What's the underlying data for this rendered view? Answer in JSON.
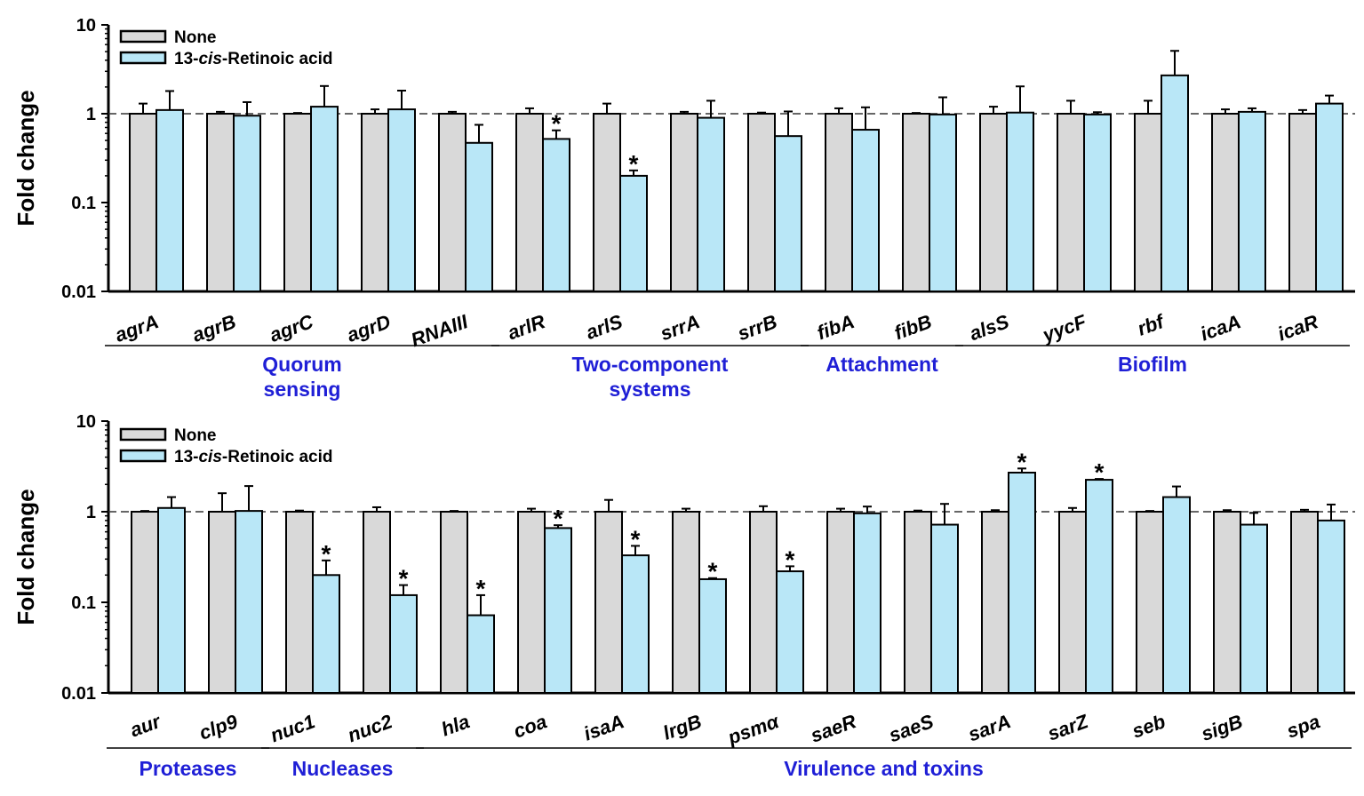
{
  "colors": {
    "none": "#d9d9d9",
    "treated": "#b9e7f7",
    "group_label": "#1f1fd6",
    "axis": "#000000"
  },
  "chart_data": [
    {
      "type": "bar",
      "y_scale": "log",
      "ylabel": "Fold change",
      "ylim": [
        0.01,
        10
      ],
      "yticks": [
        "0.01",
        "0.1",
        "1",
        "10"
      ],
      "reference_line": 1,
      "legend": {
        "placement": "top-left",
        "entries": [
          {
            "prefix": "None",
            "italic": "",
            "suffix": ""
          },
          {
            "prefix": "13-",
            "italic": "cis",
            "suffix": "-Retinoic acid"
          }
        ]
      },
      "categories": [
        "agrA",
        "agrB",
        "agrC",
        "agrD",
        "RNAIII",
        "arlR",
        "arlS",
        "srrA",
        "srrB",
        "fibA",
        "fibB",
        "alsS",
        "yycF",
        "rbf",
        "icaA",
        "icaR"
      ],
      "series": [
        {
          "name": "None",
          "values": [
            1.0,
            1.0,
            1.0,
            1.0,
            1.0,
            1.0,
            1.0,
            1.0,
            1.0,
            1.0,
            1.0,
            1.0,
            1.0,
            1.0,
            1.0,
            1.0
          ],
          "errors": [
            0.3,
            0.05,
            0.02,
            0.12,
            0.05,
            0.15,
            0.3,
            0.05,
            0.03,
            0.15,
            0.02,
            0.2,
            0.4,
            0.4,
            0.12,
            0.1
          ]
        },
        {
          "name": "13-cis-Retinoic acid",
          "values": [
            1.1,
            0.95,
            1.2,
            1.12,
            0.47,
            0.52,
            0.2,
            0.9,
            0.56,
            0.66,
            0.98,
            1.03,
            0.98,
            2.7,
            1.05,
            1.3
          ],
          "errors": [
            0.7,
            0.4,
            0.85,
            0.7,
            0.28,
            0.13,
            0.03,
            0.5,
            0.5,
            0.52,
            0.55,
            1.0,
            0.06,
            2.4,
            0.1,
            0.3
          ]
        }
      ],
      "significant": [
        "arlR",
        "arlS"
      ],
      "star_label": "*",
      "groups": [
        {
          "label_lines": [
            "Quorum",
            "sensing"
          ],
          "from": 0,
          "to": 4
        },
        {
          "label_lines": [
            "Two-component",
            "systems"
          ],
          "from": 5,
          "to": 8
        },
        {
          "label_lines": [
            "Attachment"
          ],
          "from": 9,
          "to": 10
        },
        {
          "label_lines": [
            "Biofilm"
          ],
          "from": 11,
          "to": 15
        }
      ]
    },
    {
      "type": "bar",
      "y_scale": "log",
      "ylabel": "Fold change",
      "ylim": [
        0.01,
        10
      ],
      "yticks": [
        "0.01",
        "0.1",
        "1",
        "10"
      ],
      "reference_line": 1,
      "legend": {
        "placement": "top-left",
        "entries": [
          {
            "prefix": "None",
            "italic": "",
            "suffix": ""
          },
          {
            "prefix": "13-",
            "italic": "cis",
            "suffix": "-Retinoic acid"
          }
        ]
      },
      "categories": [
        "aur",
        "clp9",
        "nuc1",
        "nuc2",
        "hla",
        "coa",
        "isaA",
        "lrgB",
        "psmα",
        "saeR",
        "saeS",
        "sarA",
        "sarZ",
        "seb",
        "sigB",
        "spa"
      ],
      "series": [
        {
          "name": "None",
          "values": [
            1.0,
            1.0,
            1.0,
            1.0,
            1.0,
            1.0,
            1.0,
            1.0,
            1.0,
            1.0,
            1.0,
            1.0,
            1.0,
            1.0,
            1.0,
            1.0
          ],
          "errors": [
            0.02,
            0.6,
            0.03,
            0.12,
            0.02,
            0.08,
            0.35,
            0.08,
            0.15,
            0.08,
            0.03,
            0.04,
            0.1,
            0.02,
            0.04,
            0.05
          ]
        },
        {
          "name": "13-cis-Retinoic acid",
          "values": [
            1.1,
            1.02,
            0.2,
            0.12,
            0.072,
            0.66,
            0.33,
            0.18,
            0.22,
            0.96,
            0.72,
            2.7,
            2.25,
            1.45,
            0.72,
            0.8
          ],
          "errors": [
            0.35,
            0.9,
            0.09,
            0.035,
            0.048,
            0.05,
            0.09,
            0.005,
            0.03,
            0.18,
            0.5,
            0.3,
            0.05,
            0.45,
            0.25,
            0.4
          ]
        }
      ],
      "significant": [
        "nuc1",
        "nuc2",
        "hla",
        "coa",
        "isaA",
        "lrgB",
        "psmα",
        "sarA",
        "sarZ"
      ],
      "star_label": "*",
      "groups": [
        {
          "label_lines": [
            "Proteases"
          ],
          "from": 0,
          "to": 1
        },
        {
          "label_lines": [
            "Nucleases"
          ],
          "from": 2,
          "to": 3
        },
        {
          "label_lines": [
            "Virulence and toxins"
          ],
          "from": 4,
          "to": 15
        }
      ]
    }
  ]
}
